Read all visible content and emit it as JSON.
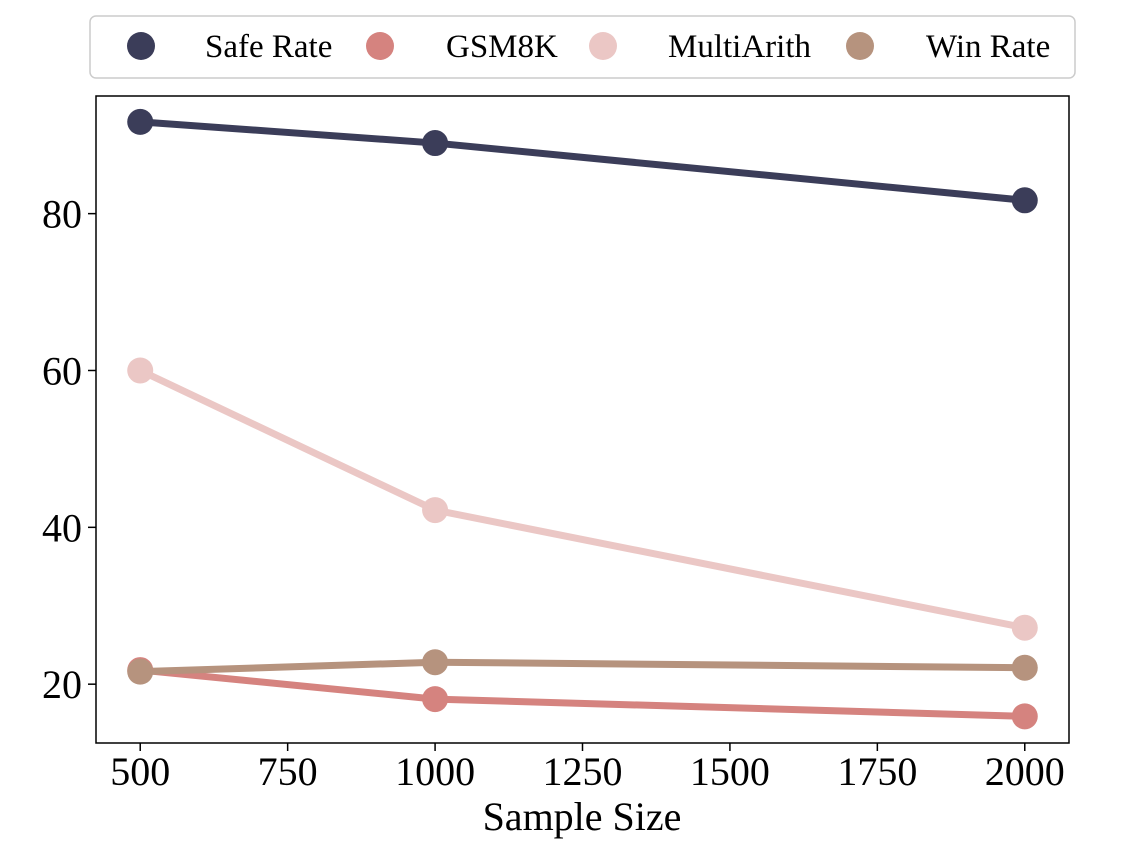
{
  "chart_data": {
    "type": "line",
    "title": "",
    "xlabel": "Sample Size",
    "ylabel": "",
    "x": [
      500,
      1000,
      2000
    ],
    "xlim": [
      425,
      2075
    ],
    "ylim": [
      12.5,
      95
    ],
    "xticks": [
      500,
      750,
      1000,
      1250,
      1500,
      1750,
      2000
    ],
    "xtick_labels": [
      "500",
      "750",
      "1000",
      "1250",
      "1500",
      "1750",
      "2000"
    ],
    "yticks": [
      20,
      40,
      60,
      80
    ],
    "ytick_labels": [
      "20",
      "40",
      "60",
      "80"
    ],
    "grid": false,
    "legend_position": "top",
    "series": [
      {
        "name": "Safe Rate",
        "color": "#3b3d59",
        "values": [
          91.7,
          89.0,
          81.7
        ]
      },
      {
        "name": "GSM8K",
        "color": "#d5837f",
        "values": [
          21.8,
          18.1,
          15.9
        ]
      },
      {
        "name": "MultiArith",
        "color": "#ebc7c5",
        "values": [
          60.0,
          42.2,
          27.2
        ]
      },
      {
        "name": "Win Rate",
        "color": "#b6937e",
        "values": [
          21.6,
          22.8,
          22.1
        ]
      }
    ]
  }
}
